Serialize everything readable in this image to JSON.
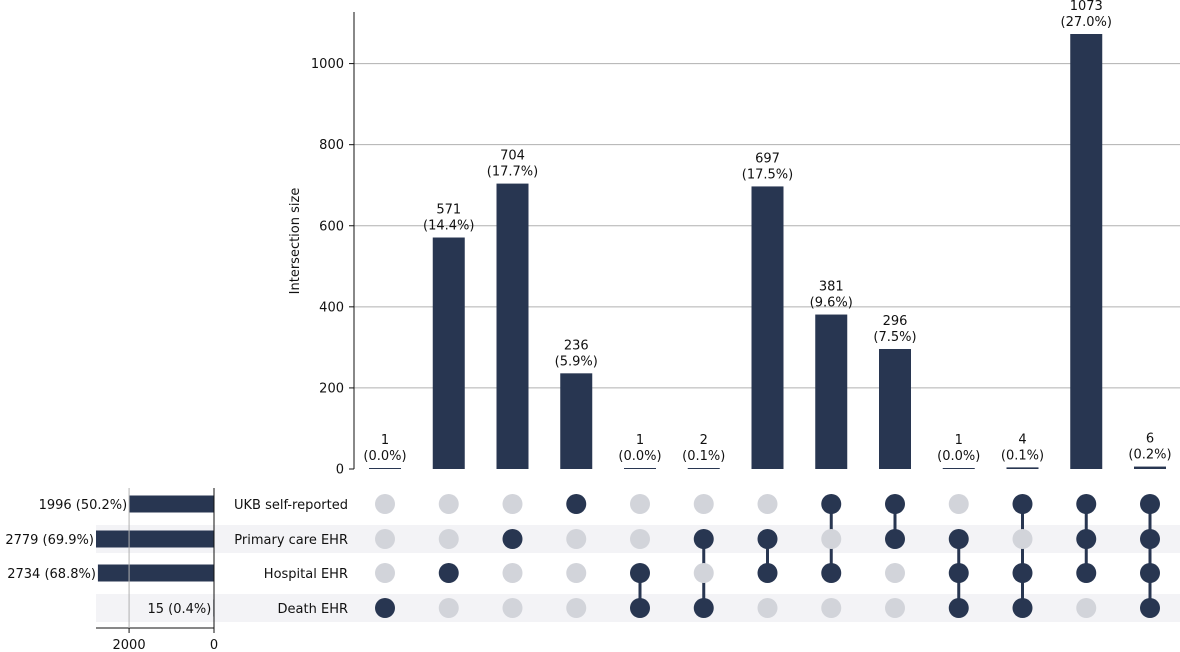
{
  "chart_data": {
    "type": "upset",
    "ylabel": "Intersection size",
    "ylim": [
      0,
      1130
    ],
    "yticks": [
      0,
      200,
      400,
      600,
      800,
      1000
    ],
    "grid": true,
    "sets": [
      {
        "name": "UKB self-reported",
        "size": 1996,
        "size_label": "1996 (50.2%)"
      },
      {
        "name": "Primary care EHR",
        "size": 2779,
        "size_label": "2779 (69.9%)"
      },
      {
        "name": "Hospital EHR",
        "size": 2734,
        "size_label": "2734 (68.8%)"
      },
      {
        "name": "Death EHR",
        "size": 15,
        "size_label": "15 (0.4%)"
      }
    ],
    "set_size_axis": {
      "ticks": [
        2000,
        0
      ],
      "xlim": [
        0,
        2779
      ]
    },
    "intersections": [
      {
        "value": 1,
        "pct": "(0.0%)",
        "members": [
          3
        ]
      },
      {
        "value": 571,
        "pct": "(14.4%)",
        "members": [
          2
        ]
      },
      {
        "value": 704,
        "pct": "(17.7%)",
        "members": [
          1
        ]
      },
      {
        "value": 236,
        "pct": "(5.9%)",
        "members": [
          0
        ]
      },
      {
        "value": 1,
        "pct": "(0.0%)",
        "members": [
          2,
          3
        ]
      },
      {
        "value": 2,
        "pct": "(0.1%)",
        "members": [
          1,
          3
        ]
      },
      {
        "value": 697,
        "pct": "(17.5%)",
        "members": [
          1,
          2
        ]
      },
      {
        "value": 381,
        "pct": "(9.6%)",
        "members": [
          0,
          2
        ]
      },
      {
        "value": 296,
        "pct": "(7.5%)",
        "members": [
          0,
          1
        ]
      },
      {
        "value": 1,
        "pct": "(0.0%)",
        "members": [
          1,
          2,
          3
        ]
      },
      {
        "value": 4,
        "pct": "(0.1%)",
        "members": [
          0,
          2,
          3
        ]
      },
      {
        "value": 1073,
        "pct": "(27.0%)",
        "members": [
          0,
          1,
          2
        ]
      },
      {
        "value": 6,
        "pct": "(0.2%)",
        "members": [
          0,
          1,
          2,
          3
        ]
      }
    ],
    "colors": {
      "bar": "#283651",
      "inactive_dot": "#d2d4da",
      "shade": "#f3f3f6",
      "grid": "#b0b0b0"
    }
  }
}
